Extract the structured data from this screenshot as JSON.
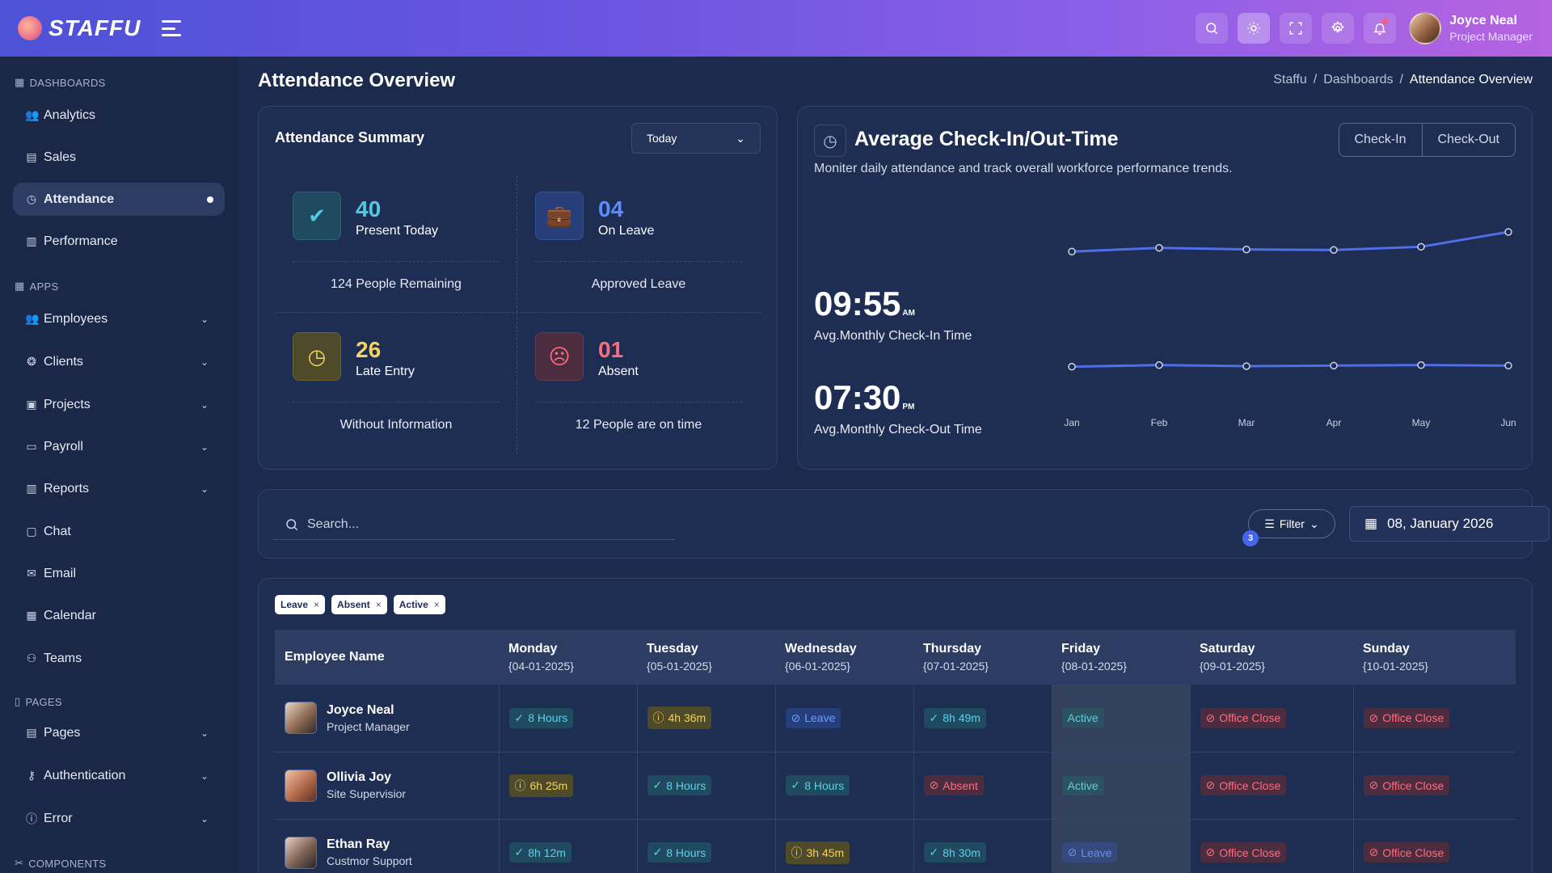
{
  "header": {
    "brand": "STAFFU",
    "user_name": "Joyce Neal",
    "user_role": "Project Manager",
    "icons": [
      "search-icon",
      "sun-icon",
      "fullscreen-icon",
      "gear-icon",
      "bell-icon"
    ]
  },
  "sidebar": {
    "groups": {
      "dashboards": "DASHBOARDS",
      "apps": "APPS",
      "pages": "PAGES",
      "components": "COMPONENTS"
    },
    "items": {
      "analytics": "Analytics",
      "sales": "Sales",
      "attendance": "Attendance",
      "performance": "Performance",
      "employees": "Employees",
      "clients": "Clients",
      "projects": "Projects",
      "payroll": "Payroll",
      "reports": "Reports",
      "chat": "Chat",
      "email": "Email",
      "calendar": "Calendar",
      "teams": "Teams",
      "pages": "Pages",
      "authentication": "Authentication",
      "error": "Error"
    }
  },
  "page": {
    "title": "Attendance Overview",
    "breadcrumb": [
      "Staffu",
      "Dashboards",
      "Attendance Overview"
    ]
  },
  "summary": {
    "title": "Attendance Summary",
    "range": "Today",
    "stats": {
      "present": {
        "value": "40",
        "label": "Present Today",
        "sub": "124 People Remaining",
        "color": "#4fc9e0"
      },
      "leave": {
        "value": "04",
        "label": "On Leave",
        "sub": "Approved Leave",
        "color": "#5b8cff"
      },
      "late": {
        "value": "26",
        "label": "Late Entry",
        "sub": "Without Information",
        "color": "#f4d35e"
      },
      "absent": {
        "value": "01",
        "label": "Absent",
        "sub": "12 People are on time",
        "color": "#ff6b7d"
      }
    }
  },
  "checkin": {
    "title": "Average Check-In/Out-Time",
    "description": "Moniter daily attendance and track overall workforce performance trends.",
    "tabs": [
      "Check-In",
      "Check-Out"
    ],
    "in_time": "09:55",
    "in_suffix": "AM",
    "in_label": "Avg.Monthly Check-In Time",
    "out_time": "07:30",
    "out_suffix": "PM",
    "out_label": "Avg.Monthly Check-Out Time",
    "accent": "#4f6ee8"
  },
  "chart_data": {
    "type": "line",
    "x": [
      "Jan",
      "Feb",
      "Mar",
      "Apr",
      "May",
      "Jun"
    ],
    "series": [
      {
        "values": [
          9.45,
          9.52,
          9.49,
          9.48,
          9.54,
          9.82
        ]
      },
      {
        "values": [
          7.28,
          7.31,
          7.29,
          7.3,
          7.31,
          7.3
        ]
      }
    ],
    "ylim": [
      7.0,
      10.2
    ],
    "grid": false
  },
  "toolbar": {
    "search_placeholder": "Search...",
    "filter_label": "Filter",
    "filter_count": "3",
    "date": "08, January 2026"
  },
  "chips": [
    "Leave",
    "Absent",
    "Active"
  ],
  "table": {
    "headers": [
      {
        "day": "Employee Name",
        "date": ""
      },
      {
        "day": "Monday",
        "date": "{04-01-2025}"
      },
      {
        "day": "Tuesday",
        "date": "{05-01-2025}"
      },
      {
        "day": "Wednesday",
        "date": "{06-01-2025}"
      },
      {
        "day": "Thursday",
        "date": "{07-01-2025}"
      },
      {
        "day": "Friday",
        "date": "{08-01-2025}"
      },
      {
        "day": "Saturday",
        "date": "{09-01-2025}"
      },
      {
        "day": "Sunday",
        "date": "{10-01-2025}"
      }
    ],
    "rows": [
      {
        "name": "Joyce Neal",
        "role": "Project Manager",
        "cells": [
          [
            "8 Hours",
            "teal"
          ],
          [
            "4h 36m",
            "yellow"
          ],
          [
            "Leave",
            "blue"
          ],
          [
            "8h 49m",
            "teal"
          ],
          [
            "Active",
            "active"
          ],
          [
            "Office Close",
            "red"
          ],
          [
            "Office Close",
            "red"
          ]
        ]
      },
      {
        "name": "Ollivia Joy",
        "role": "Site Supervisior",
        "cells": [
          [
            "6h 25m",
            "yellow"
          ],
          [
            "8 Hours",
            "teal"
          ],
          [
            "8 Hours",
            "teal"
          ],
          [
            "Absent",
            "red"
          ],
          [
            "Active",
            "active"
          ],
          [
            "Office Close",
            "red"
          ],
          [
            "Office Close",
            "red"
          ]
        ]
      },
      {
        "name": "Ethan Ray",
        "role": "Custmor Support",
        "cells": [
          [
            "8h 12m",
            "teal"
          ],
          [
            "8 Hours",
            "teal"
          ],
          [
            "3h 45m",
            "yellow"
          ],
          [
            "8h 30m",
            "teal"
          ],
          [
            "Leave",
            "leavefri"
          ],
          [
            "Office Close",
            "red"
          ],
          [
            "Office Close",
            "red"
          ]
        ]
      }
    ]
  }
}
